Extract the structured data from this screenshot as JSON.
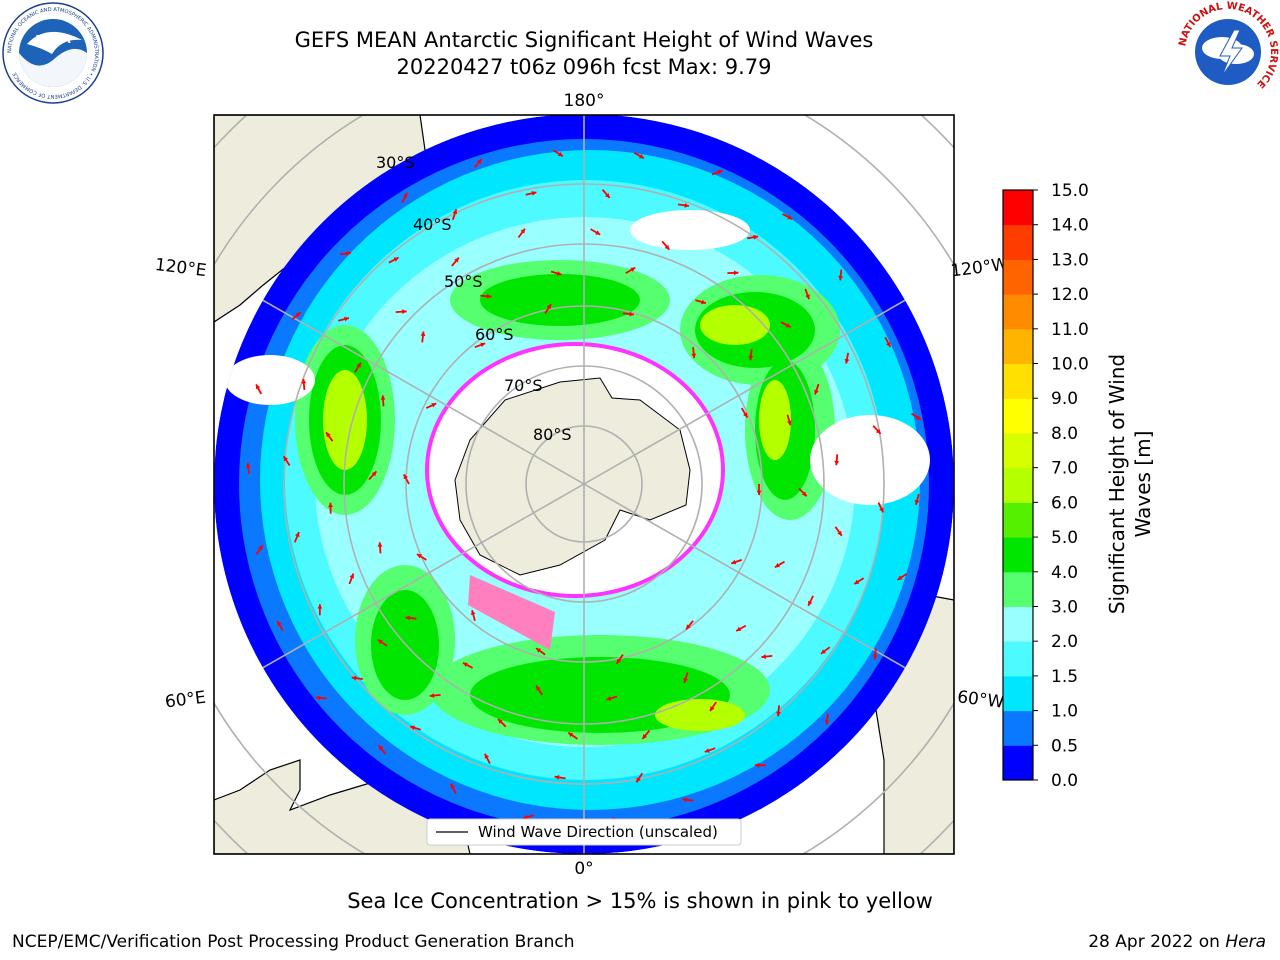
{
  "header": {
    "title_line1": "GEFS MEAN Antarctic Significant Height of Wind Waves",
    "title_line2": "20220427 t06z 096h fcst   Max: 9.79"
  },
  "logos": {
    "left": {
      "name": "noaa-logo",
      "text": "NOAA",
      "ring_text": "NATIONAL OCEANIC AND ATMOSPHERIC ADMINISTRATION • U.S. DEPARTMENT OF COMMERCE"
    },
    "right": {
      "name": "national-weather-service-logo",
      "ring_text": "NATIONAL WEATHER SERVICE"
    }
  },
  "map": {
    "projection": "south-polar-stereographic",
    "longitude_labels": {
      "top": "180°",
      "bottom": "0°",
      "upper_left": "120°E",
      "upper_right": "120°W",
      "lower_left": "60°E",
      "lower_right": "60°W"
    },
    "latitude_labels": [
      "30°S",
      "40°S",
      "50°S",
      "60°S",
      "70°S",
      "80°S"
    ],
    "legend_label": "Wind Wave Direction (unscaled)",
    "colors": {
      "land": "#eeecdc",
      "arrow": "#ff0000",
      "ice_edge": "#ff33ff"
    }
  },
  "colorbar": {
    "label_line1": "Significant Height of Wind",
    "label_line2": "Waves [m]",
    "ticks": [
      "0.0",
      "0.5",
      "1.0",
      "1.5",
      "2.0",
      "3.0",
      "4.0",
      "5.0",
      "6.0",
      "7.0",
      "8.0",
      "9.0",
      "10.0",
      "11.0",
      "12.0",
      "13.0",
      "14.0",
      "15.0"
    ],
    "colors": [
      "#0000ff",
      "#0a78ff",
      "#00e6ff",
      "#4dfaff",
      "#99ffff",
      "#55ff70",
      "#00e600",
      "#55f000",
      "#b4ff00",
      "#d7ff00",
      "#ffff00",
      "#ffe000",
      "#ffb400",
      "#ff8c00",
      "#ff6400",
      "#ff3c00",
      "#ff0000"
    ]
  },
  "caption": "Sea Ice Concentration > 15% is shown in pink to yellow",
  "footer": {
    "left": "NCEP/EMC/Verification Post Processing Product Generation Branch",
    "right_date": "28 Apr 2022 on ",
    "right_machine": "Hera"
  }
}
